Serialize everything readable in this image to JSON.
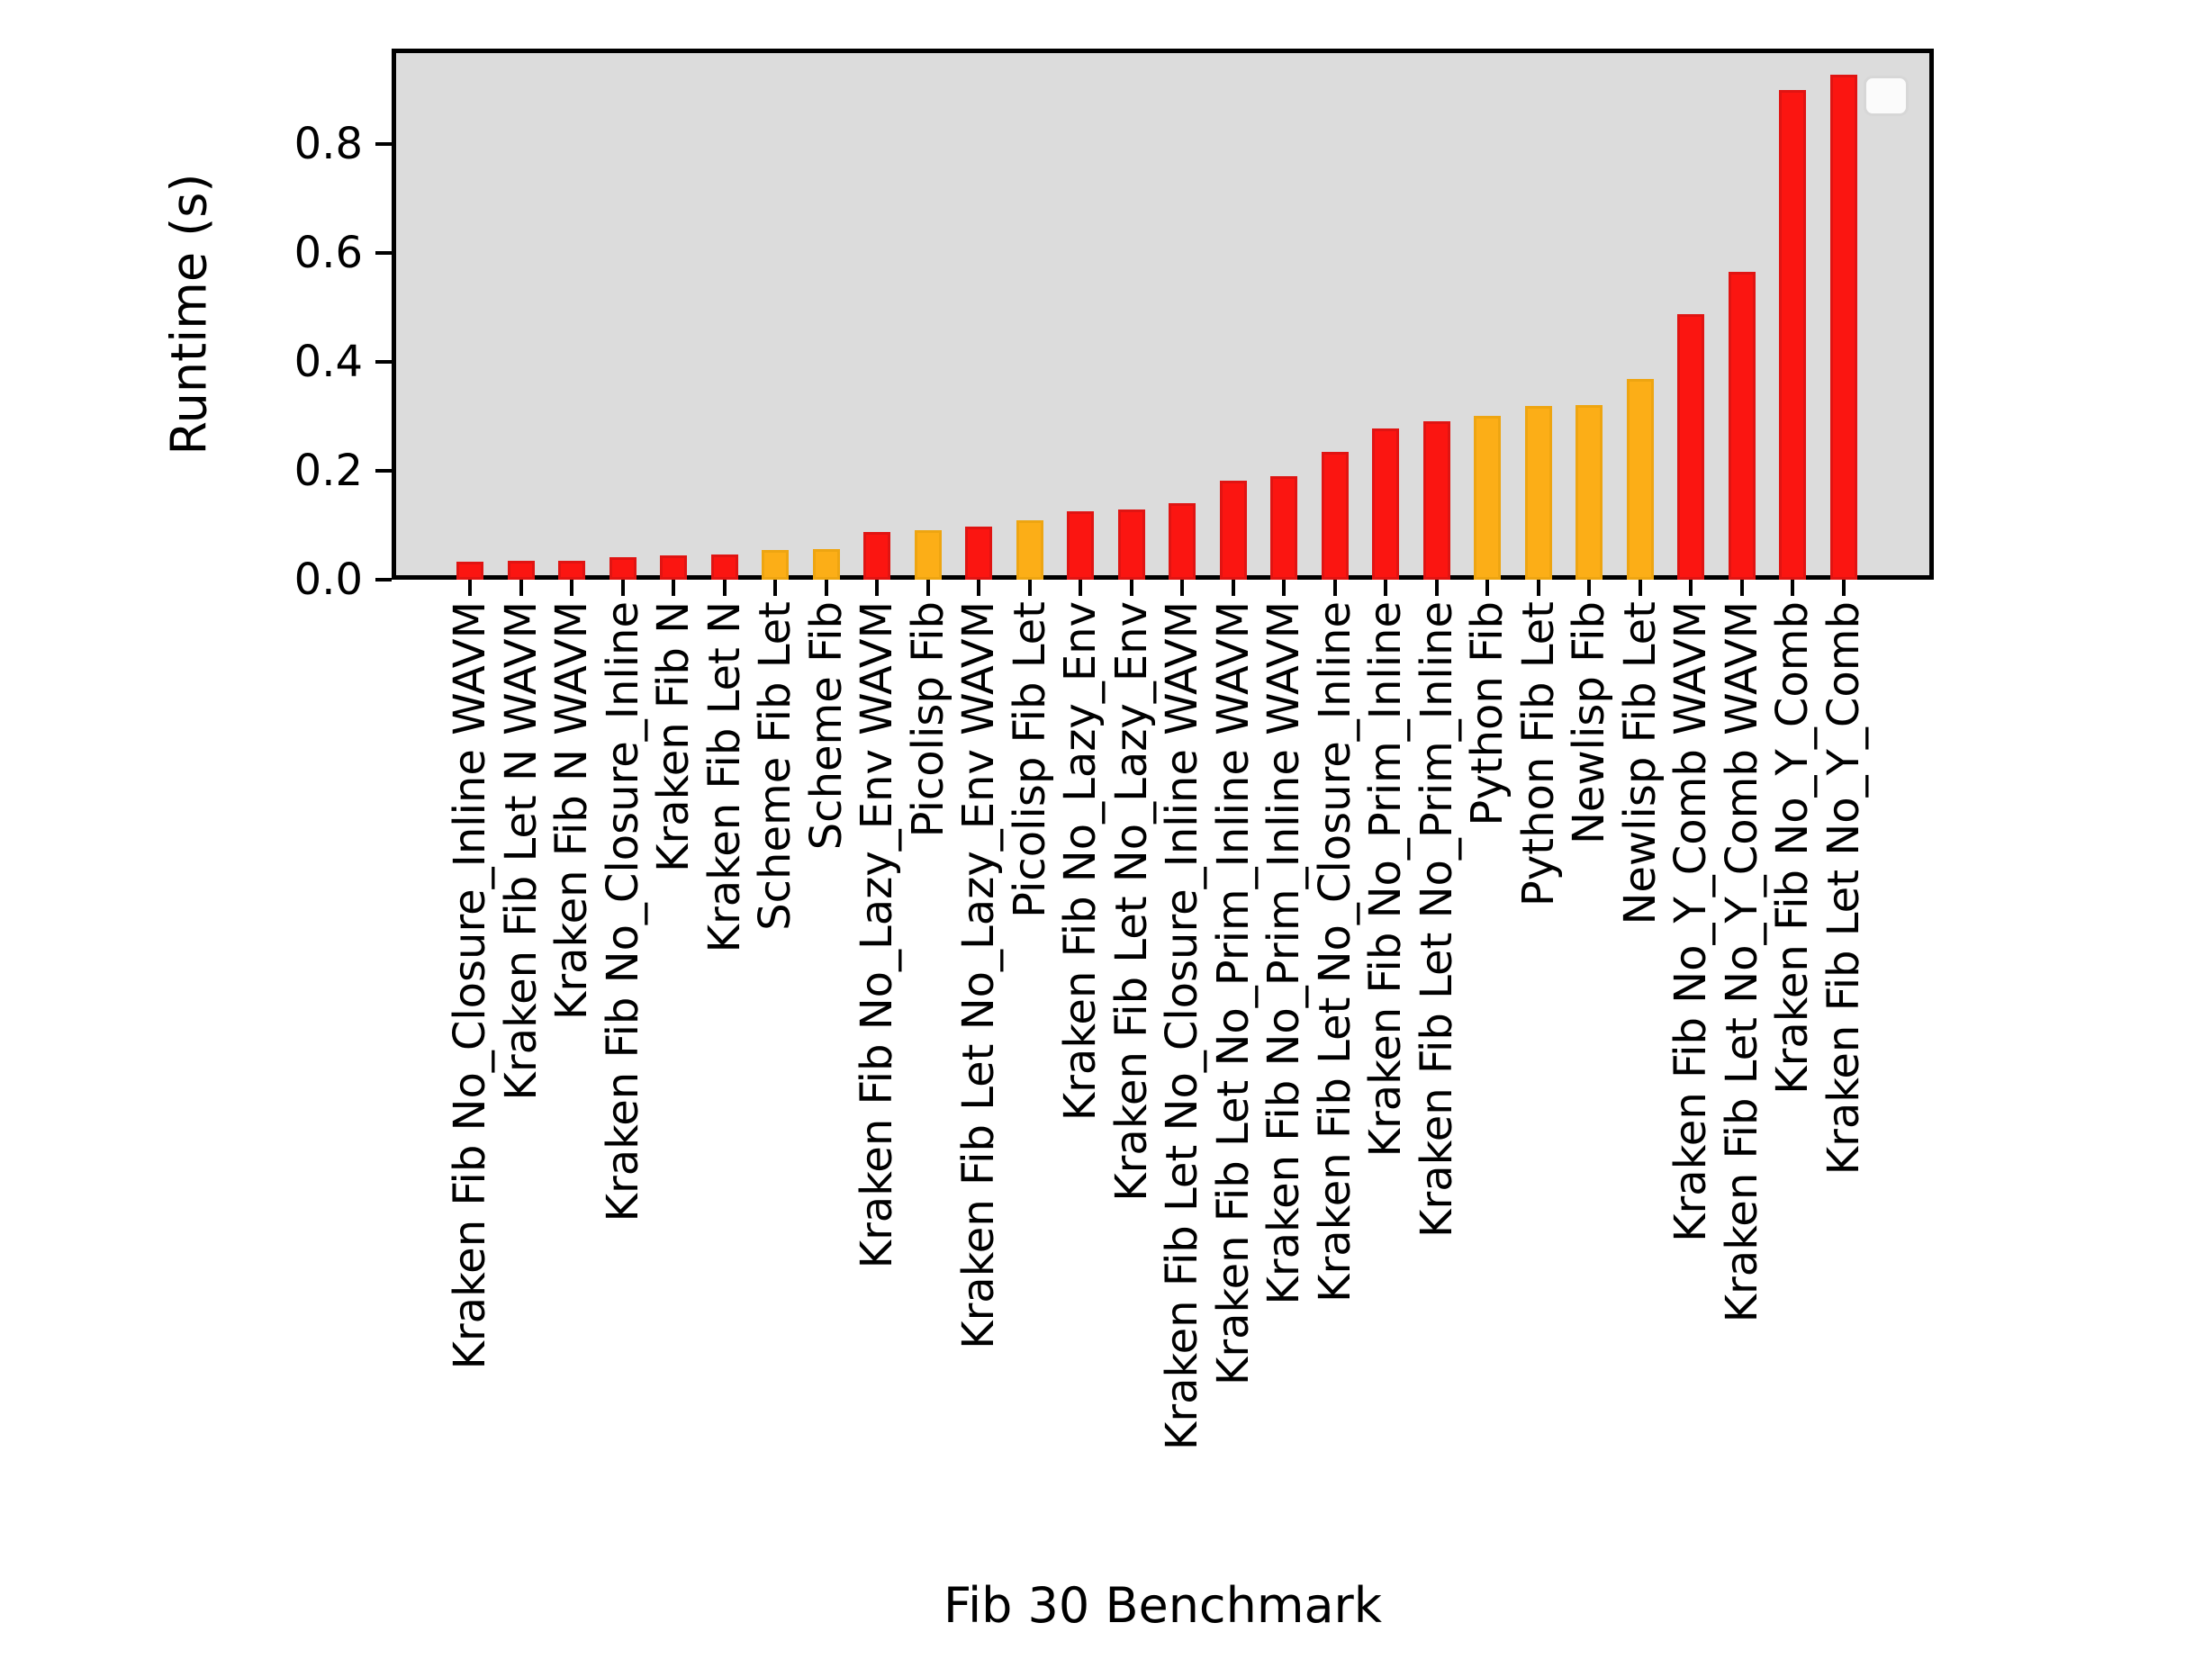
{
  "figure": {
    "background": "#ffffff",
    "plot_background": "#dcdcdc",
    "spine_color": "#000000"
  },
  "chart_data": {
    "type": "bar",
    "title": "",
    "xlabel": "Fib 30 Benchmark",
    "ylabel": "Runtime (s)",
    "ylim": [
      0,
      0.975
    ],
    "grid": false,
    "legend": {
      "visible": true,
      "entries": [],
      "position": "upper-right"
    },
    "ytick_labels": [
      "0.0",
      "0.2",
      "0.4",
      "0.6",
      "0.8"
    ],
    "ytick_values": [
      0.0,
      0.2,
      0.4,
      0.6,
      0.8
    ],
    "bar_face_colors": {
      "red": "#fb1511",
      "orange": "#fcae17"
    },
    "bar_edge_colors": {
      "red": "#e01412",
      "orange": "#eea511"
    },
    "categories": [
      "Kraken Fib No_Closure_Inline WAVM",
      "Kraken Fib Let N WAVM",
      "Kraken Fib N WAVM",
      "Kraken Fib No_Closure_Inline",
      "Kraken Fib N",
      "Kraken Fib Let N",
      "Scheme Fib Let",
      "Scheme Fib",
      "Kraken Fib No_Lazy_Env WAVM",
      "Picolisp Fib",
      "Kraken Fib Let No_Lazy_Env WAVM",
      "Picolisp Fib Let",
      "Kraken Fib No_Lazy_Env",
      "Kraken Fib Let No_Lazy_Env",
      "Kraken Fib Let No_Closure_Inline WAVM",
      "Kraken Fib Let No_Prim_Inline WAVM",
      "Kraken Fib No_Prim_Inline WAVM",
      "Kraken Fib Let No_Closure_Inline",
      "Kraken Fib No_Prim_Inline",
      "Kraken Fib Let No_Prim_Inline",
      "Python Fib",
      "Python Fib Let",
      "Newlisp Fib",
      "Newlisp Fib Let",
      "Kraken Fib No_Y_Comb WAVM",
      "Kraken Fib Let No_Y_Comb WAVM",
      "Kraken Fib No_Y_Comb",
      "Kraken Fib Let No_Y_Comb"
    ],
    "values": [
      0.033,
      0.034,
      0.035,
      0.041,
      0.044,
      0.047,
      0.055,
      0.056,
      0.088,
      0.091,
      0.097,
      0.109,
      0.125,
      0.129,
      0.141,
      0.182,
      0.19,
      0.234,
      0.278,
      0.291,
      0.301,
      0.319,
      0.321,
      0.369,
      0.488,
      0.566,
      0.899,
      0.928
    ],
    "colors": [
      "red",
      "red",
      "red",
      "red",
      "red",
      "red",
      "orange",
      "orange",
      "red",
      "orange",
      "red",
      "orange",
      "red",
      "red",
      "red",
      "red",
      "red",
      "red",
      "red",
      "red",
      "orange",
      "orange",
      "orange",
      "orange",
      "red",
      "red",
      "red",
      "red"
    ]
  }
}
